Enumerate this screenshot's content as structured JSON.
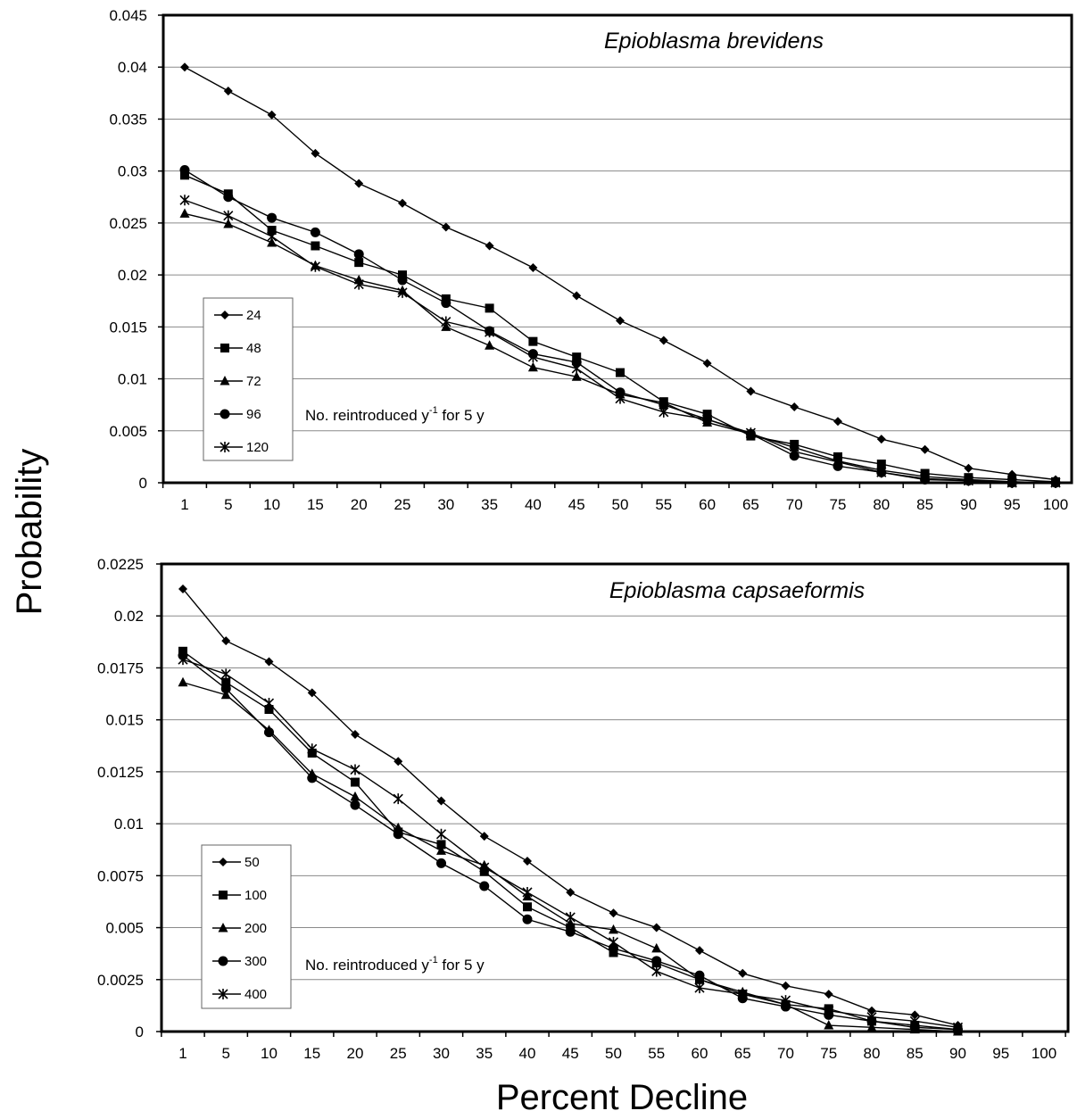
{
  "figure": {
    "ylabel": "Probability",
    "xlabel": "Percent Decline"
  },
  "chart_data": [
    {
      "type": "line",
      "title": "Epioblasma brevidens",
      "annotation": "No. reintroduced y",
      "annotation_sup": "-1",
      "annotation_suffix": " for 5 y",
      "categories": [
        "1",
        "5",
        "10",
        "15",
        "20",
        "25",
        "30",
        "35",
        "40",
        "45",
        "50",
        "55",
        "60",
        "65",
        "70",
        "75",
        "80",
        "85",
        "90",
        "95",
        "100"
      ],
      "ylim": [
        0,
        0.045
      ],
      "yticks": [
        0,
        0.005,
        0.01,
        0.015,
        0.02,
        0.025,
        0.03,
        0.035,
        0.04,
        0.045
      ],
      "ytick_labels": [
        "0",
        "0.005",
        "0.01",
        "0.015",
        "0.02",
        "0.025",
        "0.03",
        "0.035",
        "0.04",
        "0.045"
      ],
      "grid": true,
      "legend_position": "left",
      "series": [
        {
          "name": "24",
          "marker": "diamond",
          "values": [
            0.04,
            0.0377,
            0.0354,
            0.0317,
            0.0288,
            0.0269,
            0.0246,
            0.0228,
            0.0207,
            0.018,
            0.0156,
            0.0137,
            0.0115,
            0.0088,
            0.0073,
            0.0059,
            0.0042,
            0.0032,
            0.0014,
            0.0008,
            0.0003
          ]
        },
        {
          "name": "48",
          "marker": "square",
          "values": [
            0.0296,
            0.0278,
            0.0243,
            0.0228,
            0.0212,
            0.02,
            0.0177,
            0.0168,
            0.0136,
            0.0121,
            0.0106,
            0.0078,
            0.0066,
            0.0045,
            0.0037,
            0.0025,
            0.0018,
            0.0009,
            0.0005,
            0.0003,
            0.0001
          ]
        },
        {
          "name": "72",
          "marker": "triangle",
          "values": [
            0.0259,
            0.0249,
            0.0231,
            0.0209,
            0.0195,
            0.0185,
            0.015,
            0.0132,
            0.0111,
            0.0102,
            0.0085,
            0.0077,
            0.0058,
            0.0047,
            0.0034,
            0.0021,
            0.0012,
            0.0006,
            0.0003,
            0.0001,
            0.0
          ]
        },
        {
          "name": "96",
          "marker": "circle",
          "values": [
            0.0301,
            0.0275,
            0.0255,
            0.0241,
            0.022,
            0.0195,
            0.0173,
            0.0146,
            0.0124,
            0.0116,
            0.0087,
            0.0075,
            0.0061,
            0.0047,
            0.0026,
            0.0016,
            0.001,
            0.0003,
            0.0002,
            0.0,
            0.0
          ]
        },
        {
          "name": "120",
          "marker": "asterisk",
          "values": [
            0.0272,
            0.0257,
            0.0237,
            0.0208,
            0.0191,
            0.0183,
            0.0155,
            0.0145,
            0.0121,
            0.011,
            0.0081,
            0.0068,
            0.0061,
            0.0048,
            0.003,
            0.002,
            0.001,
            0.0004,
            0.0002,
            0.0,
            0.0
          ]
        }
      ]
    },
    {
      "type": "line",
      "title": "Epioblasma capsaeformis",
      "annotation": "No. reintroduced y",
      "annotation_sup": "-1",
      "annotation_suffix": " for 5 y",
      "categories": [
        "1",
        "5",
        "10",
        "15",
        "20",
        "25",
        "30",
        "35",
        "40",
        "45",
        "50",
        "55",
        "60",
        "65",
        "70",
        "75",
        "80",
        "85",
        "90",
        "95",
        "100"
      ],
      "ylim": [
        0,
        0.0225
      ],
      "yticks": [
        0,
        0.0025,
        0.005,
        0.0075,
        0.01,
        0.0125,
        0.015,
        0.0175,
        0.02,
        0.0225
      ],
      "ytick_labels": [
        "0",
        "0.0025",
        "0.005",
        "0.0075",
        "0.01",
        "0.0125",
        "0.015",
        "0.0175",
        "0.02",
        "0.0225"
      ],
      "grid": true,
      "legend_position": "left",
      "series": [
        {
          "name": "50",
          "marker": "diamond",
          "values": [
            0.0213,
            0.0188,
            0.0178,
            0.0163,
            0.0143,
            0.013,
            0.0111,
            0.0094,
            0.0082,
            0.0067,
            0.0057,
            0.005,
            0.0039,
            0.0028,
            0.0022,
            0.0018,
            0.001,
            0.0008,
            0.0003,
            null,
            null
          ]
        },
        {
          "name": "100",
          "marker": "square",
          "values": [
            0.0183,
            0.0168,
            0.0155,
            0.0134,
            0.012,
            0.0096,
            0.009,
            0.0077,
            0.006,
            0.005,
            0.0038,
            0.0033,
            0.0025,
            0.0018,
            0.0013,
            0.0011,
            0.0005,
            0.0003,
            0.0001,
            null,
            null
          ]
        },
        {
          "name": "200",
          "marker": "triangle",
          "values": [
            0.0168,
            0.0162,
            0.0145,
            0.0124,
            0.0113,
            0.0098,
            0.0087,
            0.008,
            0.0065,
            0.0052,
            0.0049,
            0.004,
            0.0025,
            0.0019,
            0.0013,
            0.0003,
            0.0002,
            0.0001,
            0.0,
            null,
            null
          ]
        },
        {
          "name": "300",
          "marker": "circle",
          "values": [
            0.0181,
            0.0165,
            0.0144,
            0.0122,
            0.0109,
            0.0095,
            0.0081,
            0.007,
            0.0054,
            0.0048,
            0.004,
            0.0034,
            0.0027,
            0.0016,
            0.0012,
            0.0008,
            0.0005,
            0.0002,
            0.0001,
            null,
            null
          ]
        },
        {
          "name": "400",
          "marker": "asterisk",
          "values": [
            0.0179,
            0.0172,
            0.0158,
            0.0136,
            0.0126,
            0.0112,
            0.0095,
            0.0079,
            0.0067,
            0.0055,
            0.0043,
            0.0029,
            0.0021,
            0.0018,
            0.0015,
            0.001,
            0.0007,
            0.0005,
            0.0002,
            null,
            null
          ]
        }
      ]
    }
  ]
}
